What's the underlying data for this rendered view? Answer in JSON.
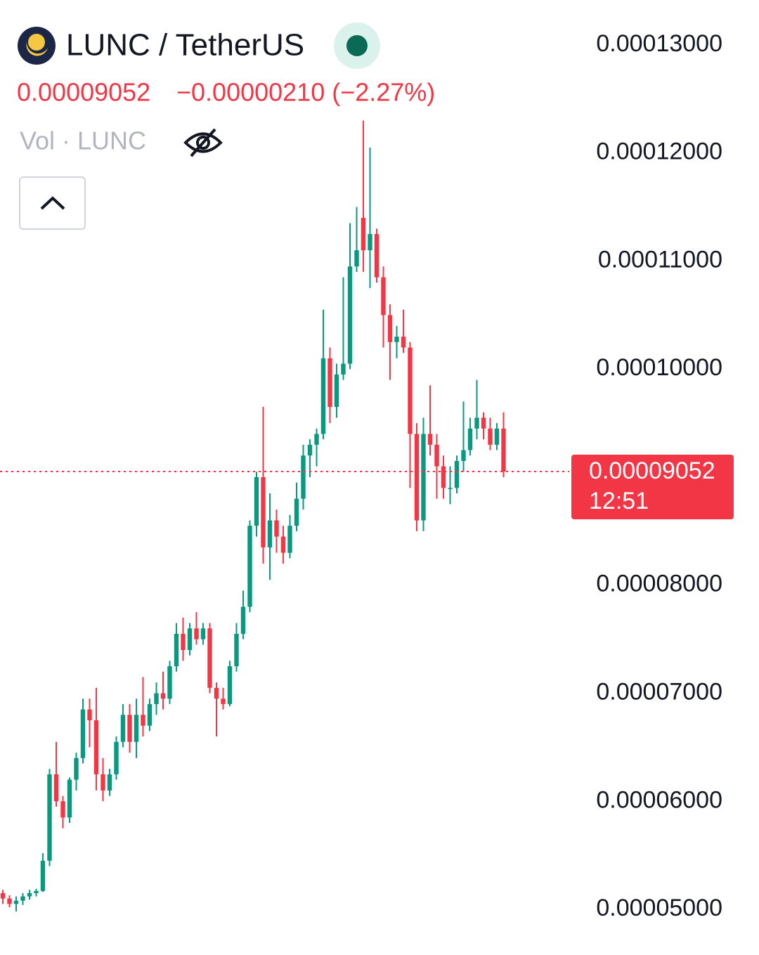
{
  "header": {
    "symbol": "LUNC / TetherUS",
    "price": "0.00009052",
    "change": "−0.00000210 (−2.27%)",
    "volume_label": "Vol · LUNC"
  },
  "chart_data": {
    "type": "candlestick",
    "up_color": "#089981",
    "down_color": "#f23645",
    "open": [
      5.15e-05,
      5.1e-05,
      5.05e-05,
      5.08e-05,
      5.12e-05,
      5.15e-05,
      5.17e-05,
      5.45e-05,
      6.25e-05,
      6e-05,
      5.85e-05,
      6.2e-05,
      6.4e-05,
      6.85e-05,
      6.75e-05,
      6.25e-05,
      6.1e-05,
      6.25e-05,
      6.55e-05,
      6.8e-05,
      6.55e-05,
      6.8e-05,
      6.7e-05,
      6.9e-05,
      7e-05,
      6.95e-05,
      7.25e-05,
      7.55e-05,
      7.4e-05,
      7.6e-05,
      7.5e-05,
      7.6e-05,
      7.05e-05,
      6.95e-05,
      6.9e-05,
      7.25e-05,
      7.55e-05,
      7.8e-05,
      8.55e-05,
      9e-05,
      8.35e-05,
      8.6e-05,
      8.45e-05,
      8.3e-05,
      8.55e-05,
      8.8e-05,
      9.2e-05,
      9.3e-05,
      9.4e-05,
      0.000101,
      9.65e-05,
      9.95e-05,
      0.0001005,
      0.0001095,
      0.000114,
      0.000111,
      0.0001125,
      0.0001085,
      0.000105,
      0.0001025,
      0.000103,
      0.000102,
      9.4e-05,
      8.6e-05,
      9.4e-05,
      9.3e-05,
      9.1e-05,
      8.9e-05,
      8.9e-05,
      9.15e-05,
      9.25e-05,
      9.45e-05,
      9.55e-05,
      9.45e-05,
      9.3e-05,
      9.45e-05
    ],
    "high": [
      5.18e-05,
      5.13e-05,
      5.12e-05,
      5.15e-05,
      5.18e-05,
      5.19e-05,
      5.52e-05,
      6.3e-05,
      6.55e-05,
      6.05e-05,
      6.22e-05,
      6.45e-05,
      6.95e-05,
      6.95e-05,
      7.05e-05,
      6.4e-05,
      6.3e-05,
      6.6e-05,
      6.9e-05,
      6.9e-05,
      6.95e-05,
      7.15e-05,
      6.95e-05,
      7.1e-05,
      7.2e-05,
      7.3e-05,
      7.65e-05,
      7.7e-05,
      7.65e-05,
      7.75e-05,
      7.65e-05,
      7.65e-05,
      7.1e-05,
      7.05e-05,
      7.3e-05,
      7.65e-05,
      7.95e-05,
      8.6e-05,
      9.05e-05,
      9.65e-05,
      8.85e-05,
      8.7e-05,
      8.55e-05,
      8.65e-05,
      8.95e-05,
      9.3e-05,
      9.35e-05,
      9.45e-05,
      0.0001055,
      0.000102,
      0.0001005,
      0.0001085,
      0.0001135,
      0.000115,
      0.000123,
      0.0001205,
      0.000113,
      0.0001095,
      0.000106,
      0.000104,
      0.0001055,
      0.0001025,
      9.5e-05,
      9.55e-05,
      9.85e-05,
      9.4e-05,
      9.2e-05,
      9.1e-05,
      9.2e-05,
      9.7e-05,
      9.55e-05,
      9.9e-05,
      9.6e-05,
      9.55e-05,
      9.5e-05,
      9.6e-05
    ],
    "low": [
      5.05e-05,
      5.02e-05,
      4.98e-05,
      5.04e-05,
      5.09e-05,
      5.12e-05,
      5.16e-05,
      5.4e-05,
      5.95e-05,
      5.75e-05,
      5.8e-05,
      6.1e-05,
      6.35e-05,
      6.5e-05,
      6.1e-05,
      6e-05,
      6.05e-05,
      6.2e-05,
      6.5e-05,
      6.45e-05,
      6.4e-05,
      6.6e-05,
      6.65e-05,
      6.8e-05,
      6.85e-05,
      6.9e-05,
      7.2e-05,
      7.3e-05,
      7.35e-05,
      7.45e-05,
      7.45e-05,
      7e-05,
      6.6e-05,
      6.85e-05,
      6.88e-05,
      7.2e-05,
      7.5e-05,
      7.75e-05,
      8.45e-05,
      8.2e-05,
      8.05e-05,
      8.3e-05,
      8.2e-05,
      8.25e-05,
      8.5e-05,
      8.7e-05,
      9e-05,
      9.1e-05,
      9.35e-05,
      9.5e-05,
      9.55e-05,
      9.9e-05,
      0.0001,
      0.000109,
      0.000109,
      0.0001075,
      0.000108,
      0.000102,
      9.9e-05,
      0.000101,
      0.0001015,
      8.9e-05,
      8.5e-05,
      8.5e-05,
      9.2e-05,
      8.8e-05,
      8.8e-05,
      8.75e-05,
      8.85e-05,
      9.05e-05,
      9.2e-05,
      9.35e-05,
      9.35e-05,
      9.25e-05,
      9.25e-05,
      9e-05
    ],
    "close": [
      5.1e-05,
      5.05e-05,
      5.08e-05,
      5.12e-05,
      5.15e-05,
      5.17e-05,
      5.45e-05,
      6.25e-05,
      6e-05,
      5.85e-05,
      6.2e-05,
      6.4e-05,
      6.85e-05,
      6.75e-05,
      6.25e-05,
      6.1e-05,
      6.25e-05,
      6.55e-05,
      6.8e-05,
      6.55e-05,
      6.8e-05,
      6.7e-05,
      6.9e-05,
      7e-05,
      6.95e-05,
      7.25e-05,
      7.55e-05,
      7.4e-05,
      7.6e-05,
      7.5e-05,
      7.6e-05,
      7.05e-05,
      6.95e-05,
      6.9e-05,
      7.25e-05,
      7.55e-05,
      7.8e-05,
      8.55e-05,
      9e-05,
      8.35e-05,
      8.6e-05,
      8.45e-05,
      8.3e-05,
      8.55e-05,
      8.8e-05,
      9.2e-05,
      9.3e-05,
      9.4e-05,
      0.000101,
      9.65e-05,
      9.95e-05,
      0.0001005,
      0.0001095,
      0.000111,
      0.000111,
      0.0001125,
      0.0001085,
      0.000105,
      0.0001025,
      0.000103,
      0.000102,
      9.4e-05,
      8.6e-05,
      9.4e-05,
      9.3e-05,
      9.1e-05,
      8.9e-05,
      8.9e-05,
      9.15e-05,
      9.25e-05,
      9.45e-05,
      9.55e-05,
      9.45e-05,
      9.3e-05,
      9.45e-05,
      9.052e-05
    ],
    "last_price_label": "0.00009052",
    "countdown": "12:51",
    "ylim": [
      4.61e-05,
      0.00013416
    ],
    "yticks": [
      {
        "value": 0.00013,
        "label": "0.00013000"
      },
      {
        "value": 0.00012,
        "label": "0.00012000"
      },
      {
        "value": 0.00011,
        "label": "0.00011000"
      },
      {
        "value": 0.0001,
        "label": "0.00010000"
      },
      {
        "value": 8e-05,
        "label": "0.00008000"
      },
      {
        "value": 7e-05,
        "label": "0.00007000"
      },
      {
        "value": 6e-05,
        "label": "0.00006000"
      },
      {
        "value": 5e-05,
        "label": "0.00005000"
      }
    ]
  }
}
